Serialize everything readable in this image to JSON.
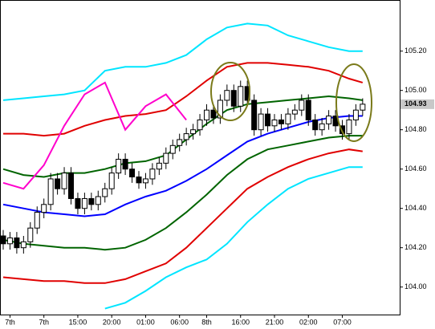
{
  "chart_data": {
    "type": "candlestick",
    "categories": [
      null,
      "7th",
      null,
      null,
      null,
      null,
      "7th",
      null,
      null,
      null,
      null,
      "15:00",
      null,
      null,
      null,
      null,
      "20:00",
      null,
      null,
      null,
      null,
      "01:00",
      null,
      null,
      null,
      null,
      "06:00",
      null,
      null,
      null,
      "8th",
      null,
      null,
      null,
      null,
      "16:00",
      null,
      null,
      null,
      null,
      "21:00",
      null,
      null,
      null,
      null,
      "02:00",
      null,
      null,
      null,
      null,
      "07:00",
      null,
      null,
      null
    ],
    "open": [
      104.26,
      104.22,
      104.25,
      104.2,
      104.23,
      104.3,
      104.38,
      104.42,
      104.55,
      104.5,
      104.58,
      104.45,
      104.4,
      104.45,
      104.42,
      104.46,
      104.5,
      104.58,
      104.65,
      104.6,
      104.56,
      104.53,
      104.55,
      104.6,
      104.63,
      104.68,
      104.72,
      104.75,
      104.78,
      104.8,
      104.85,
      104.9,
      104.86,
      104.95,
      105.0,
      104.92,
      105.02,
      104.95,
      104.8,
      104.88,
      104.82,
      104.85,
      104.83,
      104.88,
      104.9,
      104.95,
      104.85,
      104.8,
      104.83,
      104.87,
      104.82,
      104.78,
      104.85,
      104.9
    ],
    "high": [
      104.29,
      104.28,
      104.28,
      104.26,
      104.33,
      104.41,
      104.45,
      104.58,
      104.58,
      104.61,
      104.61,
      104.48,
      104.48,
      104.48,
      104.49,
      104.53,
      104.61,
      104.68,
      104.68,
      104.63,
      104.59,
      104.58,
      104.63,
      104.66,
      104.71,
      104.75,
      104.78,
      104.81,
      104.83,
      104.88,
      104.93,
      104.93,
      104.98,
      105.03,
      105.03,
      105.05,
      105.05,
      104.98,
      104.91,
      104.91,
      104.88,
      104.88,
      104.91,
      104.93,
      104.98,
      104.98,
      104.88,
      104.86,
      104.9,
      104.9,
      104.85,
      104.88,
      104.93,
      104.96
    ],
    "low": [
      104.19,
      104.19,
      104.17,
      104.17,
      104.2,
      104.27,
      104.35,
      104.39,
      104.47,
      104.47,
      104.42,
      104.37,
      104.37,
      104.39,
      104.39,
      104.43,
      104.47,
      104.55,
      104.57,
      104.53,
      104.5,
      104.5,
      104.52,
      104.57,
      104.6,
      104.65,
      104.69,
      104.72,
      104.75,
      104.77,
      104.82,
      104.83,
      104.83,
      104.92,
      104.89,
      104.89,
      104.92,
      104.77,
      104.77,
      104.79,
      104.79,
      104.8,
      104.8,
      104.85,
      104.87,
      104.82,
      104.77,
      104.77,
      104.8,
      104.79,
      104.75,
      104.75,
      104.82,
      104.87
    ],
    "close": [
      104.22,
      104.25,
      104.2,
      104.23,
      104.3,
      104.38,
      104.42,
      104.55,
      104.5,
      104.58,
      104.45,
      104.4,
      104.45,
      104.42,
      104.46,
      104.5,
      104.58,
      104.65,
      104.6,
      104.56,
      104.53,
      104.55,
      104.6,
      104.63,
      104.68,
      104.72,
      104.75,
      104.78,
      104.8,
      104.85,
      104.9,
      104.86,
      104.95,
      105.0,
      104.92,
      105.02,
      104.95,
      104.8,
      104.88,
      104.82,
      104.85,
      104.83,
      104.88,
      104.9,
      104.95,
      104.85,
      104.8,
      104.83,
      104.87,
      104.82,
      104.78,
      104.85,
      104.9,
      104.93
    ],
    "lines": [
      {
        "color": "#00e5ff",
        "x": [
          0,
          3,
          6,
          9,
          12,
          15,
          18,
          21,
          24,
          27,
          30,
          33,
          36,
          39,
          42,
          45,
          48,
          51,
          53
        ],
        "values": [
          104.95,
          104.96,
          104.97,
          104.98,
          105.0,
          105.1,
          105.12,
          105.12,
          105.14,
          105.18,
          105.26,
          105.32,
          105.34,
          105.33,
          105.28,
          105.25,
          105.22,
          105.2,
          105.2
        ]
      },
      {
        "color": "#e00000",
        "x": [
          0,
          3,
          6,
          9,
          12,
          15,
          18,
          21,
          24,
          27,
          30,
          33,
          36,
          39,
          42,
          45,
          48,
          51,
          53
        ],
        "values": [
          104.78,
          104.78,
          104.77,
          104.78,
          104.82,
          104.85,
          104.87,
          104.88,
          104.9,
          104.97,
          105.05,
          105.12,
          105.14,
          105.14,
          105.13,
          105.12,
          105.1,
          105.06,
          105.04
        ]
      },
      {
        "color": "#006400",
        "x": [
          0,
          3,
          6,
          9,
          12,
          15,
          18,
          21,
          24,
          27,
          30,
          33,
          36,
          39,
          42,
          45,
          48,
          51,
          53
        ],
        "values": [
          104.6,
          104.57,
          104.56,
          104.58,
          104.58,
          104.6,
          104.63,
          104.64,
          104.67,
          104.75,
          104.83,
          104.9,
          104.93,
          104.94,
          104.95,
          104.96,
          104.97,
          104.96,
          104.95
        ]
      },
      {
        "color": "#0000ff",
        "x": [
          0,
          3,
          6,
          9,
          12,
          15,
          18,
          21,
          24,
          27,
          30,
          33,
          36,
          39,
          42,
          45,
          48,
          51,
          53
        ],
        "values": [
          104.42,
          104.4,
          104.38,
          104.37,
          104.36,
          104.37,
          104.42,
          104.46,
          104.49,
          104.54,
          104.6,
          104.67,
          104.74,
          104.78,
          104.81,
          104.84,
          104.86,
          104.87,
          104.87
        ]
      },
      {
        "color": "#006400",
        "x": [
          0,
          3,
          6,
          9,
          12,
          15,
          18,
          21,
          24,
          27,
          30,
          33,
          36,
          39,
          42,
          45,
          48,
          51,
          53
        ],
        "values": [
          104.24,
          104.22,
          104.21,
          104.2,
          104.2,
          104.19,
          104.2,
          104.24,
          104.3,
          104.38,
          104.47,
          104.57,
          104.65,
          104.7,
          104.72,
          104.74,
          104.76,
          104.77,
          104.77
        ]
      },
      {
        "color": "#e00000",
        "x": [
          0,
          3,
          6,
          9,
          12,
          15,
          18,
          21,
          24,
          27,
          30,
          33,
          36,
          39,
          42,
          45,
          48,
          51,
          53
        ],
        "values": [
          104.05,
          104.04,
          104.03,
          104.03,
          104.02,
          104.02,
          104.04,
          104.08,
          104.12,
          104.2,
          104.3,
          104.4,
          104.5,
          104.56,
          104.61,
          104.65,
          104.68,
          104.7,
          104.69
        ]
      },
      {
        "color": "#00e5ff",
        "x": [
          0,
          3,
          6,
          9,
          12,
          15,
          18,
          21,
          24,
          27,
          30,
          33,
          36,
          39,
          42,
          45,
          48,
          51,
          53
        ],
        "values": [
          null,
          null,
          null,
          null,
          null,
          103.89,
          103.92,
          103.98,
          104.05,
          104.1,
          104.14,
          104.22,
          104.33,
          104.42,
          104.5,
          104.55,
          104.58,
          104.61,
          104.61
        ]
      },
      {
        "color": "#ff00cc",
        "x": [
          0,
          3,
          6,
          9,
          12,
          15,
          18,
          21,
          24,
          27
        ],
        "values": [
          104.53,
          104.5,
          104.62,
          104.82,
          104.98,
          105.04,
          104.8,
          104.92,
          104.98,
          104.85
        ]
      }
    ],
    "ylim": [
      103.86,
      105.46
    ],
    "yticks": [
      {
        "value": 104.0,
        "label": "104.00"
      },
      {
        "value": 104.2,
        "label": "104.20"
      },
      {
        "value": 104.4,
        "label": "104.40"
      },
      {
        "value": 104.6,
        "label": "104.60"
      },
      {
        "value": 104.8,
        "label": "104.80"
      },
      {
        "value": 105.0,
        "label": "105.00"
      },
      {
        "value": 105.2,
        "label": "105.20"
      }
    ]
  }
}
